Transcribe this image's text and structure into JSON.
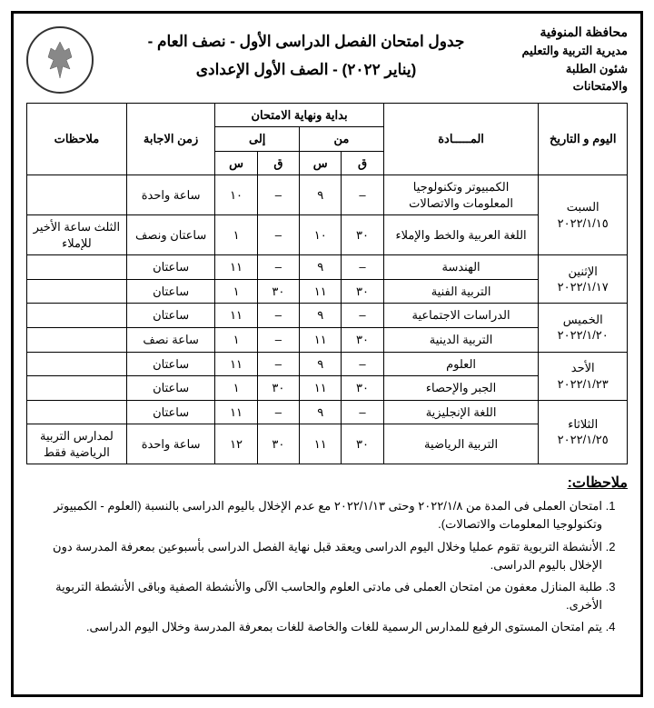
{
  "ministry": {
    "line1": "محافظة المنوفية",
    "line2": "مديرية التربية والتعليم",
    "line3": "شئون الطلبة والامتحانات"
  },
  "title": {
    "line1": "جدول امتحان الفصل الدراسى الأول - نصف العام -",
    "line2": "(يناير ٢٠٢٢) - الصف الأول الإعدادى"
  },
  "headers": {
    "day": "اليوم و التاريخ",
    "subject": "المـــــادة",
    "timing": "بداية ونهاية الامتحان",
    "from": "من",
    "to": "إلى",
    "q": "ق",
    "s": "س",
    "duration": "زمن الاجابة",
    "notes": "ملاحظات"
  },
  "rows": [
    {
      "day": "السبت ٢٠٢٢/١/١٥",
      "span": 2,
      "subject": "الكمبيوتر وتكنولوجيا المعلومات والاتصالات",
      "from_q": "–",
      "from_s": "٩",
      "to_q": "–",
      "to_s": "١٠",
      "duration": "ساعة واحدة",
      "notes": ""
    },
    {
      "subject": "اللغة العربية والخط والإملاء",
      "from_q": "٣٠",
      "from_s": "١٠",
      "to_q": "–",
      "to_s": "١",
      "duration": "ساعتان ونصف",
      "notes": "الثلث ساعة الأخير للإملاء"
    },
    {
      "day": "الإثنين ٢٠٢٢/١/١٧",
      "span": 2,
      "subject": "الهندسة",
      "from_q": "–",
      "from_s": "٩",
      "to_q": "–",
      "to_s": "١١",
      "duration": "ساعتان",
      "notes": ""
    },
    {
      "subject": "التربية الفنية",
      "from_q": "٣٠",
      "from_s": "١١",
      "to_q": "٣٠",
      "to_s": "١",
      "duration": "ساعتان",
      "notes": ""
    },
    {
      "day": "الخميس ٢٠٢٢/١/٢٠",
      "span": 2,
      "subject": "الدراسات الاجتماعية",
      "from_q": "–",
      "from_s": "٩",
      "to_q": "–",
      "to_s": "١١",
      "duration": "ساعتان",
      "notes": ""
    },
    {
      "subject": "التربية الدينية",
      "from_q": "٣٠",
      "from_s": "١١",
      "to_q": "–",
      "to_s": "١",
      "duration": "ساعة نصف",
      "notes": ""
    },
    {
      "day": "الأحد ٢٠٢٢/١/٢٣",
      "span": 2,
      "subject": "العلوم",
      "from_q": "–",
      "from_s": "٩",
      "to_q": "–",
      "to_s": "١١",
      "duration": "ساعتان",
      "notes": ""
    },
    {
      "subject": "الجبر والإحصاء",
      "from_q": "٣٠",
      "from_s": "١١",
      "to_q": "٣٠",
      "to_s": "١",
      "duration": "ساعتان",
      "notes": ""
    },
    {
      "day": "الثلاثاء ٢٠٢٢/١/٢٥",
      "span": 2,
      "subject": "اللغة الإنجليزية",
      "from_q": "–",
      "from_s": "٩",
      "to_q": "–",
      "to_s": "١١",
      "duration": "ساعتان",
      "notes": ""
    },
    {
      "subject": "التربية الرياضية",
      "from_q": "٣٠",
      "from_s": "١١",
      "to_q": "٣٠",
      "to_s": "١٢",
      "duration": "ساعة واحدة",
      "notes": "لمدارس التربية الرياضية فقط"
    }
  ],
  "notes_heading": "ملاحظات:",
  "notes": [
    "امتحان العملى فى المدة من ٢٠٢٢/١/٨ وحتى ٢٠٢٢/١/١٣ مع عدم الإخلال باليوم الدراسى بالنسبة (العلوم - الكمبيوتر وتكنولوجيا المعلومات والاتصالات).",
    "الأنشطة التربوية تقوم عمليا وخلال اليوم الدراسى ويعقد قبل نهاية الفصل الدراسى بأسبوعين بمعرفة المدرسة دون الإخلال باليوم الدراسى.",
    "طلبة المنازل معفون من امتحان العملى فى مادتى العلوم والحاسب الآلى والأنشطة الصفية وباقى الأنشطة التربوية الأخرى.",
    "يتم امتحان المستوى الرفيع للمدارس الرسمية للغات والخاصة للغات بمعرفة المدرسة وخلال اليوم الدراسى."
  ]
}
